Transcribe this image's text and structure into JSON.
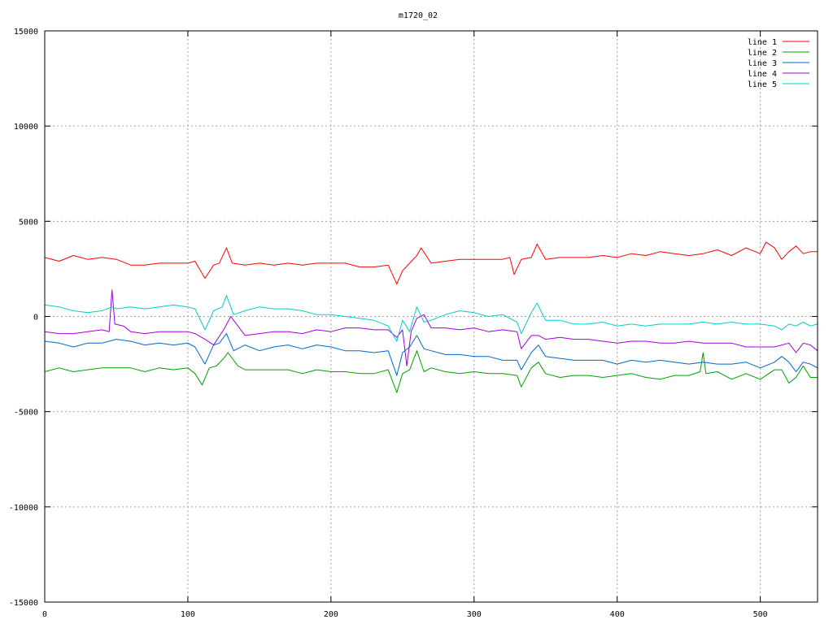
{
  "chart_data": {
    "type": "line",
    "title": "m1720_02",
    "xlabel": "",
    "ylabel": "",
    "xlim": [
      0,
      540
    ],
    "ylim": [
      -15000,
      15000
    ],
    "xticks": [
      0,
      100,
      200,
      300,
      400,
      500
    ],
    "yticks": [
      -15000,
      -10000,
      -5000,
      0,
      5000,
      10000,
      15000
    ],
    "grid": true,
    "legend_position": "top-right",
    "series": [
      {
        "name": "line 1",
        "color": "#ff0000",
        "x": [
          0,
          10,
          20,
          30,
          40,
          50,
          60,
          70,
          80,
          90,
          100,
          105,
          112,
          118,
          122,
          127,
          131,
          140,
          150,
          160,
          170,
          180,
          190,
          200,
          210,
          220,
          230,
          240,
          246,
          250,
          255,
          260,
          263,
          270,
          280,
          290,
          300,
          310,
          320,
          325,
          328,
          333,
          340,
          344,
          350,
          360,
          370,
          380,
          390,
          400,
          410,
          420,
          430,
          440,
          450,
          460,
          470,
          480,
          490,
          500,
          504,
          510,
          515,
          520,
          525,
          530,
          535,
          540
        ],
        "y": [
          3100,
          2900,
          3200,
          3000,
          3100,
          3000,
          2700,
          2700,
          2800,
          2800,
          2800,
          2900,
          2000,
          2700,
          2800,
          3600,
          2800,
          2700,
          2800,
          2700,
          2800,
          2700,
          2800,
          2800,
          2800,
          2600,
          2600,
          2700,
          1700,
          2400,
          2800,
          3200,
          3600,
          2800,
          2900,
          3000,
          3000,
          3000,
          3000,
          3100,
          2200,
          3000,
          3100,
          3800,
          3000,
          3100,
          3100,
          3100,
          3200,
          3100,
          3300,
          3200,
          3400,
          3300,
          3200,
          3300,
          3500,
          3200,
          3600,
          3300,
          3900,
          3600,
          3000,
          3400,
          3700,
          3300,
          3400,
          3400
        ]
      },
      {
        "name": "line 2",
        "color": "#00a000",
        "x": [
          0,
          10,
          20,
          30,
          40,
          50,
          60,
          70,
          80,
          90,
          100,
          105,
          110,
          115,
          120,
          125,
          128,
          135,
          140,
          150,
          160,
          170,
          180,
          190,
          200,
          210,
          220,
          230,
          240,
          246,
          250,
          255,
          260,
          265,
          270,
          280,
          290,
          300,
          310,
          320,
          330,
          333,
          340,
          345,
          350,
          360,
          370,
          380,
          390,
          400,
          410,
          420,
          430,
          440,
          450,
          458,
          460,
          462,
          470,
          480,
          490,
          500,
          510,
          515,
          520,
          525,
          530,
          535,
          540
        ],
        "y": [
          -2900,
          -2700,
          -2900,
          -2800,
          -2700,
          -2700,
          -2700,
          -2900,
          -2700,
          -2800,
          -2700,
          -3000,
          -3600,
          -2700,
          -2600,
          -2200,
          -1900,
          -2600,
          -2800,
          -2800,
          -2800,
          -2800,
          -3000,
          -2800,
          -2900,
          -2900,
          -3000,
          -3000,
          -2800,
          -4000,
          -3000,
          -2800,
          -1800,
          -2900,
          -2700,
          -2900,
          -3000,
          -2900,
          -3000,
          -3000,
          -3100,
          -3700,
          -2700,
          -2400,
          -3000,
          -3200,
          -3100,
          -3100,
          -3200,
          -3100,
          -3000,
          -3200,
          -3300,
          -3100,
          -3100,
          -2900,
          -1900,
          -3000,
          -2900,
          -3300,
          -3000,
          -3300,
          -2800,
          -2800,
          -3500,
          -3200,
          -2600,
          -3200,
          -3200
        ]
      },
      {
        "name": "line 3",
        "color": "#0066cc",
        "x": [
          0,
          10,
          20,
          30,
          40,
          50,
          60,
          70,
          80,
          90,
          100,
          105,
          112,
          118,
          122,
          127,
          132,
          140,
          150,
          160,
          170,
          180,
          190,
          200,
          210,
          220,
          230,
          240,
          246,
          250,
          255,
          260,
          265,
          270,
          280,
          290,
          300,
          310,
          320,
          330,
          333,
          340,
          345,
          350,
          360,
          370,
          380,
          390,
          400,
          410,
          420,
          430,
          440,
          450,
          460,
          470,
          480,
          490,
          500,
          510,
          515,
          520,
          525,
          530,
          535,
          540
        ],
        "y": [
          -1300,
          -1400,
          -1600,
          -1400,
          -1400,
          -1200,
          -1300,
          -1500,
          -1400,
          -1500,
          -1400,
          -1600,
          -2500,
          -1500,
          -1400,
          -900,
          -1800,
          -1500,
          -1800,
          -1600,
          -1500,
          -1700,
          -1500,
          -1600,
          -1800,
          -1800,
          -1900,
          -1800,
          -3100,
          -1900,
          -1600,
          -1000,
          -1700,
          -1800,
          -2000,
          -2000,
          -2100,
          -2100,
          -2300,
          -2300,
          -2800,
          -1900,
          -1500,
          -2100,
          -2200,
          -2300,
          -2300,
          -2300,
          -2500,
          -2300,
          -2400,
          -2300,
          -2400,
          -2500,
          -2400,
          -2500,
          -2500,
          -2400,
          -2700,
          -2400,
          -2100,
          -2400,
          -2900,
          -2400,
          -2500,
          -2700
        ]
      },
      {
        "name": "line 4",
        "color": "#a000d8",
        "x": [
          0,
          10,
          20,
          30,
          40,
          45,
          47,
          49,
          55,
          60,
          70,
          80,
          90,
          100,
          105,
          112,
          118,
          125,
          130,
          140,
          150,
          160,
          170,
          180,
          190,
          200,
          210,
          220,
          230,
          240,
          246,
          250,
          253,
          256,
          260,
          265,
          270,
          280,
          290,
          300,
          310,
          320,
          330,
          333,
          340,
          345,
          350,
          360,
          370,
          380,
          390,
          400,
          410,
          420,
          430,
          440,
          450,
          460,
          470,
          480,
          490,
          500,
          510,
          520,
          525,
          530,
          535,
          540
        ],
        "y": [
          -800,
          -900,
          -900,
          -800,
          -700,
          -800,
          1400,
          -400,
          -500,
          -800,
          -900,
          -800,
          -800,
          -800,
          -900,
          -1200,
          -1500,
          -700,
          0,
          -1000,
          -900,
          -800,
          -800,
          -900,
          -700,
          -800,
          -600,
          -600,
          -700,
          -700,
          -1100,
          -700,
          -2600,
          -800,
          -100,
          100,
          -600,
          -600,
          -700,
          -600,
          -800,
          -700,
          -800,
          -1700,
          -1000,
          -1000,
          -1200,
          -1100,
          -1200,
          -1200,
          -1300,
          -1400,
          -1300,
          -1300,
          -1400,
          -1400,
          -1300,
          -1400,
          -1400,
          -1400,
          -1600,
          -1600,
          -1600,
          -1400,
          -1900,
          -1400,
          -1500,
          -1800
        ]
      },
      {
        "name": "line 5",
        "color": "#00cccc",
        "x": [
          0,
          10,
          20,
          30,
          40,
          47,
          50,
          60,
          70,
          80,
          90,
          100,
          105,
          112,
          118,
          124,
          127,
          132,
          140,
          150,
          160,
          170,
          180,
          190,
          200,
          210,
          220,
          230,
          240,
          246,
          250,
          255,
          260,
          265,
          270,
          280,
          290,
          300,
          310,
          320,
          330,
          333,
          340,
          344,
          350,
          360,
          370,
          380,
          390,
          400,
          410,
          420,
          430,
          440,
          450,
          460,
          470,
          480,
          490,
          500,
          510,
          515,
          520,
          525,
          530,
          535,
          540
        ],
        "y": [
          600,
          500,
          300,
          200,
          300,
          500,
          400,
          500,
          400,
          500,
          600,
          500,
          400,
          -700,
          300,
          500,
          1100,
          100,
          300,
          500,
          400,
          400,
          300,
          100,
          100,
          0,
          -100,
          -200,
          -500,
          -1300,
          -200,
          -800,
          500,
          -300,
          -200,
          100,
          300,
          200,
          0,
          100,
          -300,
          -900,
          200,
          700,
          -200,
          -200,
          -400,
          -400,
          -300,
          -500,
          -400,
          -500,
          -400,
          -400,
          -400,
          -300,
          -400,
          -300,
          -400,
          -400,
          -500,
          -700,
          -400,
          -500,
          -300,
          -500,
          -400
        ]
      }
    ]
  }
}
